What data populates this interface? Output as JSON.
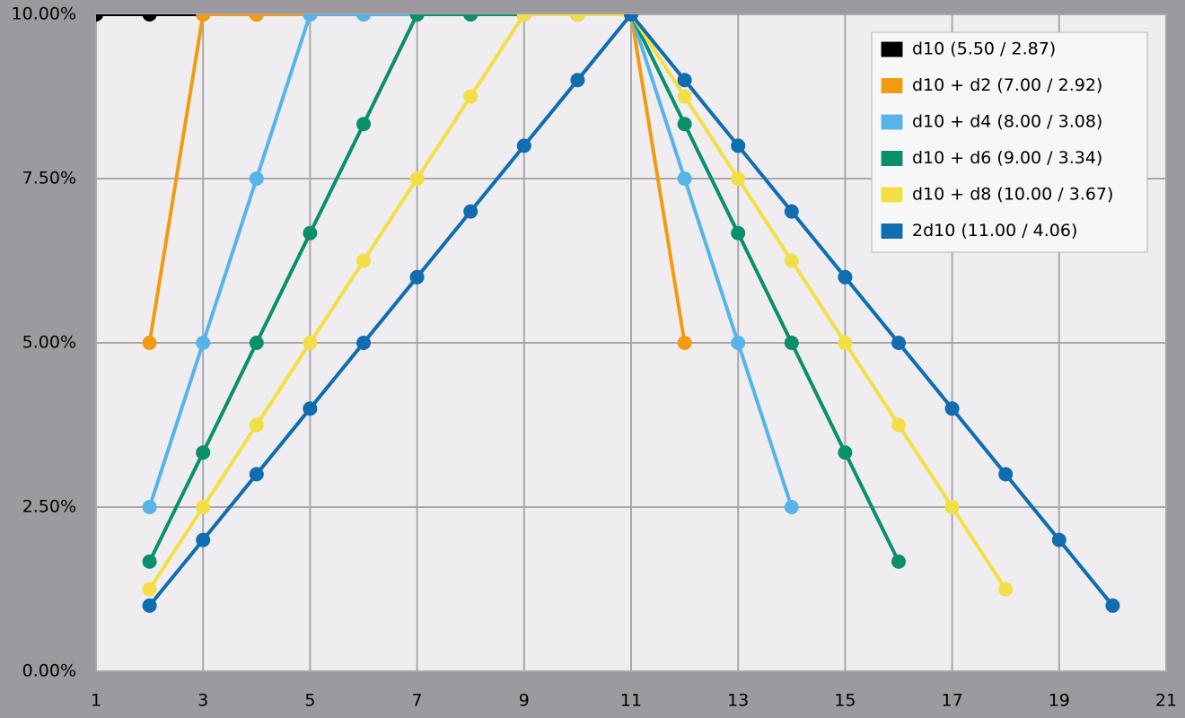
{
  "chart_data": {
    "type": "line",
    "x": [
      1,
      2,
      3,
      4,
      5,
      6,
      7,
      8,
      9,
      10,
      11,
      12,
      13,
      14,
      15,
      16,
      17,
      18,
      19,
      20
    ],
    "series": [
      {
        "name": "d10 (5.50 / 2.87)",
        "color": "#000000",
        "values": [
          10,
          10,
          10,
          10,
          10,
          10,
          10,
          10,
          10,
          10,
          null,
          null,
          null,
          null,
          null,
          null,
          null,
          null,
          null,
          null
        ]
      },
      {
        "name": "d10 + d2 (7.00 / 2.92)",
        "color": "#f09c12",
        "values": [
          null,
          5,
          10,
          10,
          10,
          10,
          10,
          10,
          10,
          10,
          10,
          5,
          null,
          null,
          null,
          null,
          null,
          null,
          null,
          null
        ]
      },
      {
        "name": "d10 + d4 (8.00 / 3.08)",
        "color": "#56b4e9",
        "values": [
          null,
          2.5,
          5,
          7.5,
          10,
          10,
          10,
          10,
          10,
          10,
          10,
          7.5,
          5,
          2.5,
          null,
          null,
          null,
          null,
          null,
          null
        ]
      },
      {
        "name": "d10 + d6 (9.00 / 3.34)",
        "color": "#0a8f6c",
        "values": [
          null,
          1.67,
          3.33,
          5,
          6.67,
          8.33,
          10,
          10,
          10,
          10,
          10,
          8.33,
          6.67,
          5,
          3.33,
          1.67,
          null,
          null,
          null,
          null
        ]
      },
      {
        "name": "d10 + d8 (10.00 / 3.67)",
        "color": "#f2df46",
        "values": [
          null,
          1.25,
          2.5,
          3.75,
          5,
          6.25,
          7.5,
          8.75,
          10,
          10,
          10,
          8.75,
          7.5,
          6.25,
          5,
          3.75,
          2.5,
          1.25,
          null,
          null
        ]
      },
      {
        "name": "2d10 (11.00 / 4.06)",
        "color": "#0f6db0",
        "values": [
          null,
          1,
          2,
          3,
          4,
          5,
          6,
          7,
          8,
          9,
          10,
          9,
          8,
          7,
          6,
          5,
          4,
          3,
          2,
          1
        ]
      }
    ],
    "xlim": [
      1,
      21
    ],
    "xticks": [
      1,
      3,
      5,
      7,
      9,
      11,
      13,
      15,
      17,
      19,
      21
    ],
    "ylim": [
      0,
      10
    ],
    "yticks": [
      {
        "value": 0,
        "label": "0.00%"
      },
      {
        "value": 2.5,
        "label": "2.50%"
      },
      {
        "value": 5,
        "label": "5.00%"
      },
      {
        "value": 7.5,
        "label": "7.50%"
      },
      {
        "value": 10,
        "label": "10.00%"
      }
    ],
    "grid": true,
    "legend": "upper right"
  }
}
